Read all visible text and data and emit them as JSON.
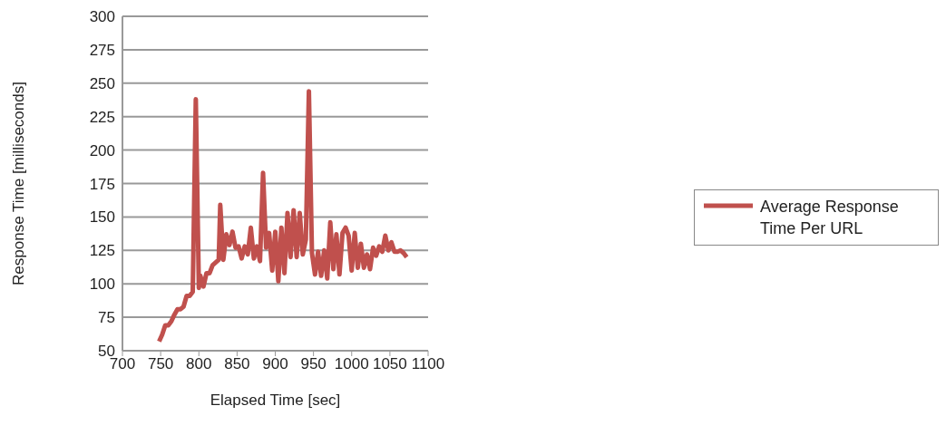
{
  "chart_data": {
    "type": "line",
    "xlabel": "Elapsed Time [sec]",
    "ylabel": "Response Time [milliseconds]",
    "xlim": [
      700,
      1100
    ],
    "xticks": [
      700,
      750,
      800,
      850,
      900,
      950,
      1000,
      1050,
      1100
    ],
    "ylim": [
      50,
      300
    ],
    "yticks": [
      50,
      75,
      100,
      125,
      150,
      175,
      200,
      225,
      250,
      275,
      300
    ],
    "grid": "y",
    "legend": "right",
    "marker": "none",
    "line_style": "solid",
    "x": [
      748,
      752,
      756,
      760,
      764,
      768,
      772,
      776,
      780,
      784,
      788,
      792,
      796,
      800,
      802,
      806,
      810,
      814,
      818,
      822,
      826,
      828,
      832,
      836,
      840,
      844,
      848,
      852,
      856,
      860,
      864,
      868,
      872,
      876,
      880,
      884,
      888,
      892,
      896,
      900,
      904,
      908,
      912,
      916,
      920,
      924,
      928,
      932,
      936,
      940,
      944,
      948,
      952,
      956,
      960,
      964,
      968,
      972,
      976,
      980,
      984,
      988,
      992,
      996,
      1000,
      1004,
      1008,
      1012,
      1016,
      1020,
      1024,
      1028,
      1032,
      1036,
      1040,
      1044,
      1048,
      1052,
      1056,
      1060,
      1064,
      1068,
      1072
    ],
    "series": [
      {
        "name": "Average Response Time Per URL",
        "color": "#c0504d",
        "values": [
          57,
          62,
          69,
          69,
          72,
          77,
          81,
          81,
          83,
          91,
          91,
          94,
          238,
          97,
          106,
          98,
          108,
          108,
          114,
          116,
          118,
          159,
          118,
          137,
          129,
          139,
          127,
          128,
          119,
          128,
          122,
          142,
          119,
          128,
          117,
          183,
          127,
          138,
          110,
          139,
          102,
          142,
          108,
          153,
          120,
          155,
          120,
          153,
          122,
          133,
          244,
          123,
          107,
          124,
          106,
          125,
          104,
          146,
          111,
          137,
          107,
          138,
          142,
          136,
          110,
          138,
          112,
          130,
          112,
          122,
          111,
          127,
          121,
          128,
          124,
          136,
          125,
          131,
          124,
          124,
          125,
          123,
          120
        ]
      }
    ]
  }
}
